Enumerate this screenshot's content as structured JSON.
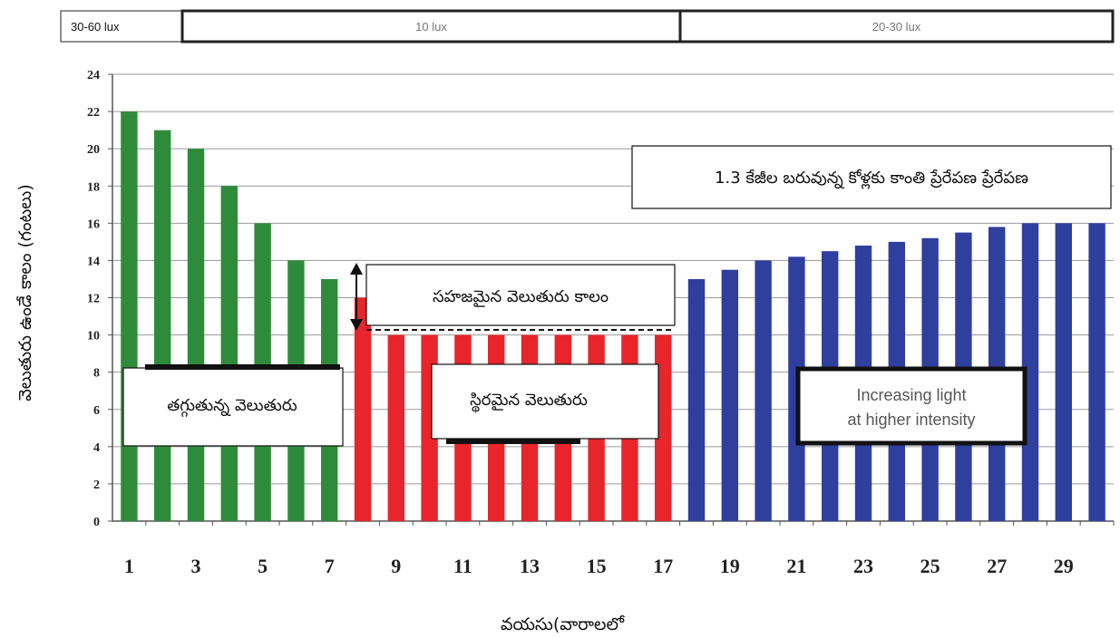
{
  "lux_bands": [
    {
      "label": "30-60 lux",
      "from": 0.5,
      "to": 7.5
    },
    {
      "label": "10 lux",
      "from": 7.5,
      "to": 17.5
    },
    {
      "label": "20-30 lux",
      "from": 17.5,
      "to": 30.5
    }
  ],
  "annotations": {
    "light_stimulation": "1.3 కేజీల బరువున్న కోళ్లకు కాంతి ప్రేరేపణ ప్రేరేపణ",
    "natural_light": "సహజమైన వెలుతురు కాలం",
    "decreasing": "తగ్గుతున్న వెలుతురు",
    "constant": "స్థిరమైన వెలుతురు",
    "increasing_line1": "Increasing light",
    "increasing_line2": "at higher intensity"
  },
  "colors": {
    "decreasing": "#2e8b3a",
    "constant": "#e8252a",
    "increasing": "#2f3f9e"
  },
  "chart_data": {
    "type": "bar",
    "xlabel": "వయసు(వారాలలో",
    "ylabel": "వెలుతురు ఉండే కాలం (గంటలు)",
    "ylim": [
      0,
      24
    ],
    "yticks": [
      0,
      2,
      4,
      6,
      8,
      10,
      12,
      14,
      16,
      18,
      20,
      22,
      24
    ],
    "xtick_labels": [
      "1",
      "3",
      "5",
      "7",
      "9",
      "11",
      "13",
      "15",
      "17",
      "19",
      "21",
      "23",
      "25",
      "27",
      "29"
    ],
    "grid": true,
    "x": [
      1,
      2,
      3,
      4,
      5,
      6,
      7,
      8,
      9,
      10,
      11,
      12,
      13,
      14,
      15,
      16,
      17,
      18,
      19,
      20,
      21,
      22,
      23,
      24,
      25,
      26,
      27,
      28,
      29,
      30
    ],
    "values": [
      22,
      21,
      20,
      18,
      16,
      14,
      13,
      12,
      10,
      10,
      10,
      10,
      10,
      10,
      10,
      10,
      10,
      13,
      13.5,
      14,
      14.2,
      14.5,
      14.8,
      15,
      15.2,
      15.5,
      15.8,
      16,
      16,
      16
    ],
    "phases": [
      "decreasing",
      "decreasing",
      "decreasing",
      "decreasing",
      "decreasing",
      "decreasing",
      "decreasing",
      "constant",
      "constant",
      "constant",
      "constant",
      "constant",
      "constant",
      "constant",
      "constant",
      "constant",
      "constant",
      "increasing",
      "increasing",
      "increasing",
      "increasing",
      "increasing",
      "increasing",
      "increasing",
      "increasing",
      "increasing",
      "increasing",
      "increasing",
      "increasing",
      "increasing"
    ]
  }
}
